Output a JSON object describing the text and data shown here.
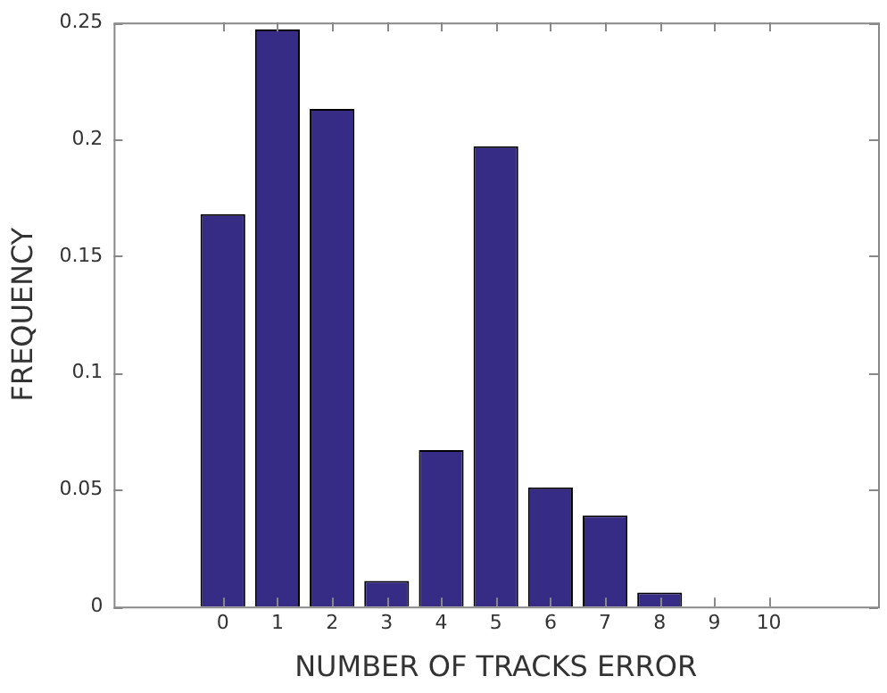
{
  "chart_data": {
    "type": "bar",
    "xlabel": "NUMBER OF TRACKS ERROR",
    "ylabel": "FREQUENCY",
    "x": [
      0,
      1,
      2,
      3,
      4,
      5,
      6,
      7,
      8,
      9,
      10
    ],
    "values": [
      0.168,
      0.247,
      0.213,
      0.011,
      0.067,
      0.197,
      0.051,
      0.039,
      0.006,
      0,
      0
    ],
    "color": "#372c85",
    "xlim": [
      -2,
      12
    ],
    "xticks": [
      0,
      1,
      2,
      3,
      4,
      5,
      6,
      7,
      8,
      9,
      10
    ],
    "ylim": [
      0,
      0.25
    ],
    "yticks": [
      0,
      0.05,
      0.1,
      0.15,
      0.2,
      0.25
    ],
    "grid": false,
    "legend": false
  }
}
